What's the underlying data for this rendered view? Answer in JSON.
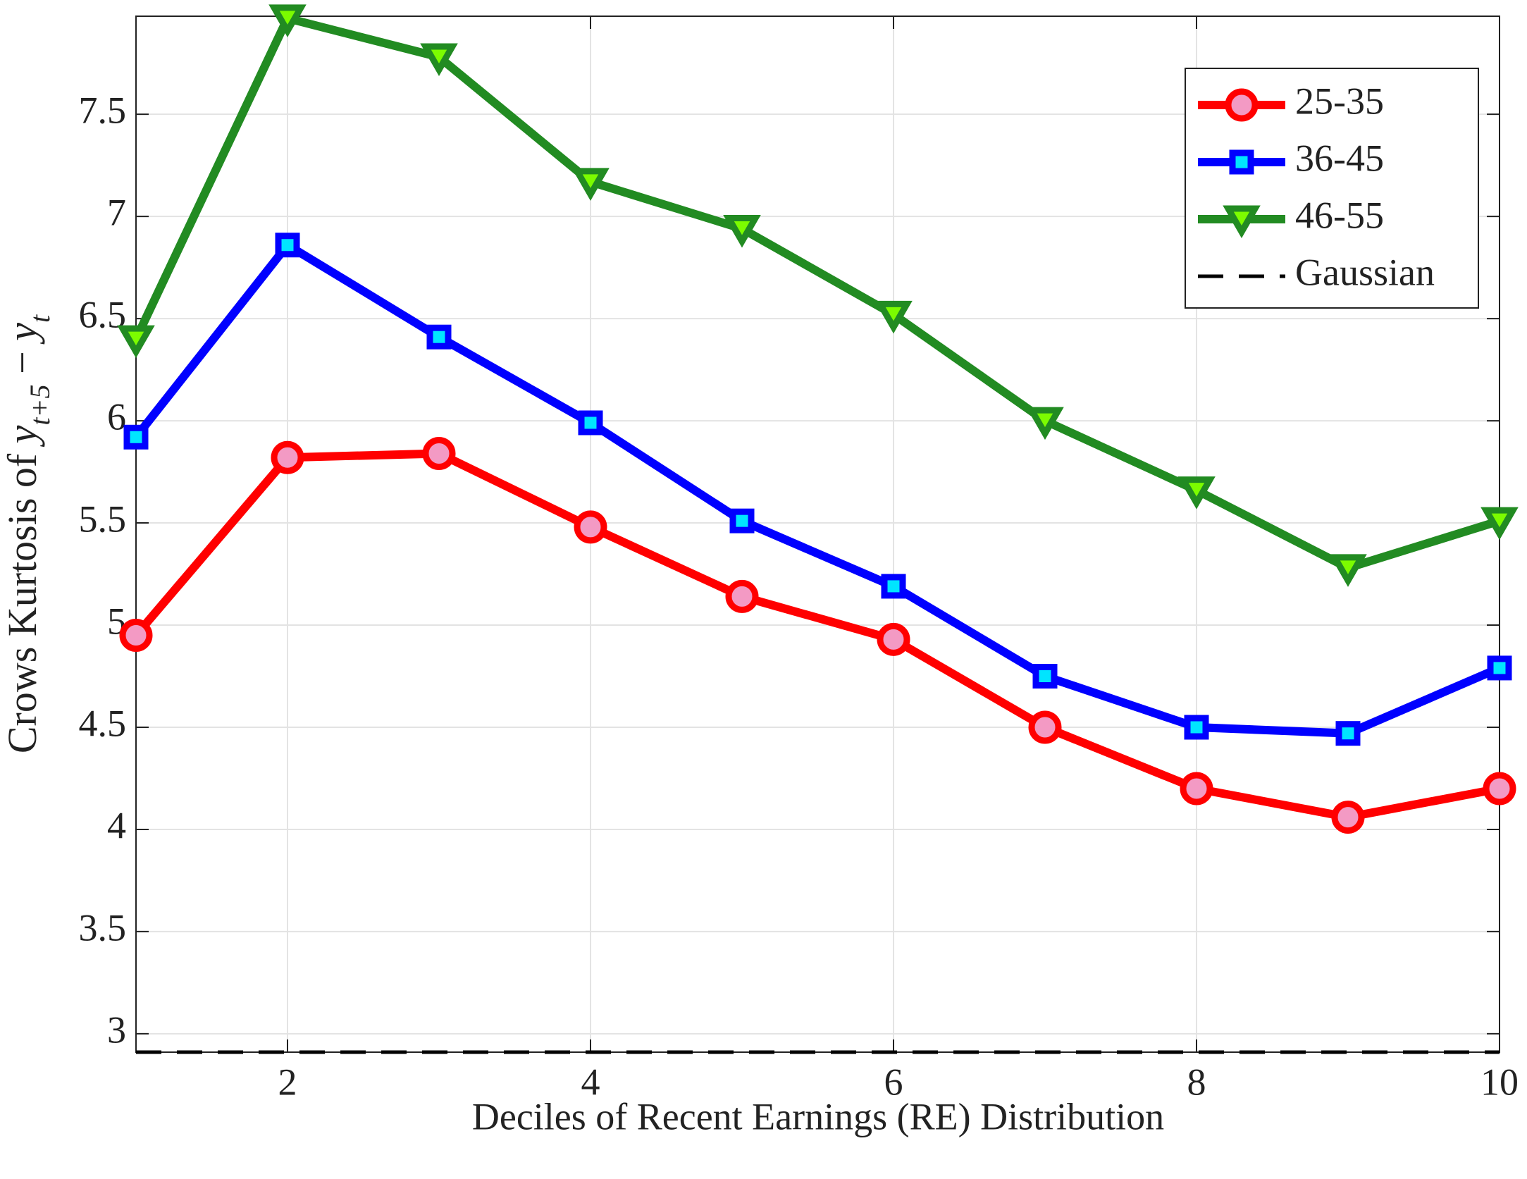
{
  "chart_data": {
    "type": "line",
    "xlabel": "Deciles of Recent Earnings (RE) Distribution",
    "ylabel": [
      "Crows Kurtosis of ",
      "y",
      "t+5",
      " − ",
      "y",
      "t"
    ],
    "x": [
      1,
      2,
      3,
      4,
      5,
      6,
      7,
      8,
      9,
      10
    ],
    "series": [
      {
        "name": "25-35",
        "color": "#ff0000",
        "marker": "circle",
        "marker_face": "#f39ac4",
        "values": [
          4.95,
          5.82,
          5.84,
          5.48,
          5.14,
          4.93,
          4.5,
          4.2,
          4.06,
          4.2
        ]
      },
      {
        "name": "36-45",
        "color": "#0000ff",
        "marker": "square",
        "marker_face": "#00e5ff",
        "values": [
          5.92,
          6.86,
          6.41,
          5.99,
          5.51,
          5.19,
          4.75,
          4.5,
          4.47,
          4.79
        ]
      },
      {
        "name": "46-55",
        "color": "#228b22",
        "marker": "triangle-down",
        "marker_face": "#7cfc00",
        "values": [
          6.4,
          7.97,
          7.78,
          7.17,
          6.94,
          6.52,
          6.0,
          5.66,
          5.28,
          5.51
        ]
      },
      {
        "name": "Gaussian",
        "color": "#000000",
        "dashed": true,
        "values": [
          2.91,
          2.91,
          2.91,
          2.91,
          2.91,
          2.91,
          2.91,
          2.91,
          2.91,
          2.91
        ]
      }
    ],
    "xlim": [
      1,
      10
    ],
    "xticks": [
      2,
      4,
      6,
      8,
      10
    ],
    "ylim": [
      2.91,
      7.98
    ],
    "yticks": [
      3,
      3.5,
      4,
      4.5,
      5,
      5.5,
      6,
      6.5,
      7,
      7.5
    ],
    "grid": true,
    "legend": "upper right"
  }
}
